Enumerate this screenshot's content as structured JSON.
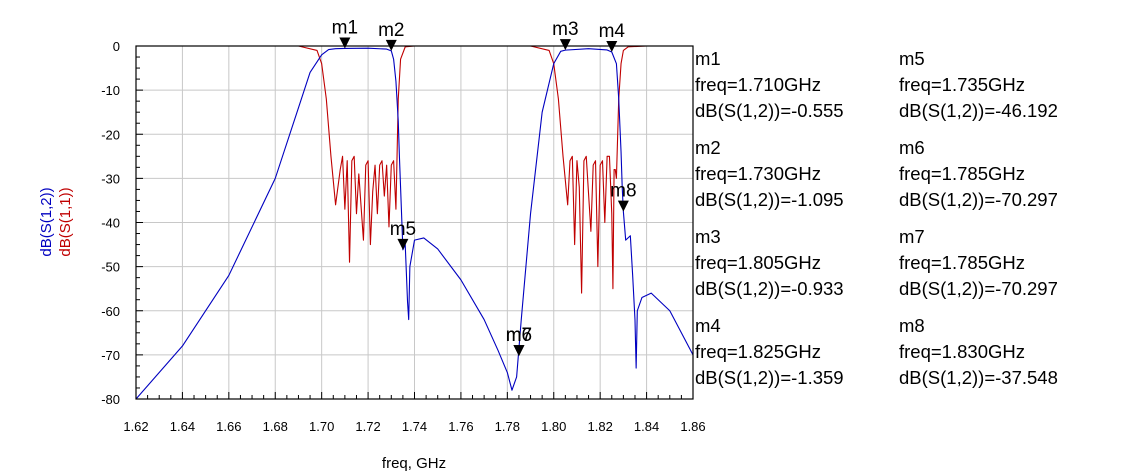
{
  "chart_data": {
    "type": "line",
    "title": "",
    "xlabel": "freq, GHz",
    "ylabels": [
      {
        "text": "dB(S(1,2))",
        "color": "#0000c0"
      },
      {
        "text": "dB(S(1,1))",
        "color": "#c00000"
      }
    ],
    "xlim": [
      1.62,
      1.86
    ],
    "ylim": [
      -80,
      0
    ],
    "x_ticks": [
      "1.62",
      "1.64",
      "1.66",
      "1.68",
      "1.70",
      "1.72",
      "1.74",
      "1.76",
      "1.78",
      "1.80",
      "1.82",
      "1.84",
      "1.86"
    ],
    "y_ticks": [
      "0",
      "-10",
      "-20",
      "-30",
      "-40",
      "-50",
      "-60",
      "-70",
      "-80"
    ],
    "x_tick_values": [
      1.62,
      1.64,
      1.66,
      1.68,
      1.7,
      1.72,
      1.74,
      1.76,
      1.78,
      1.8,
      1.82,
      1.84,
      1.86
    ],
    "y_tick_values": [
      0,
      -10,
      -20,
      -30,
      -40,
      -50,
      -60,
      -70,
      -80
    ],
    "grid": true,
    "series": [
      {
        "name": "dB(S(1,2))",
        "color": "#0000c0",
        "x": [
          1.62,
          1.64,
          1.66,
          1.68,
          1.69,
          1.695,
          1.7,
          1.703,
          1.706,
          1.71,
          1.72,
          1.728,
          1.73,
          1.731,
          1.732,
          1.733,
          1.7335,
          1.734,
          1.735,
          1.736,
          1.737,
          1.7375,
          1.738,
          1.74,
          1.744,
          1.75,
          1.76,
          1.77,
          1.776,
          1.78,
          1.782,
          1.784,
          1.786,
          1.79,
          1.795,
          1.8,
          1.803,
          1.805,
          1.815,
          1.823,
          1.825,
          1.827,
          1.828,
          1.829,
          1.8295,
          1.83,
          1.831,
          1.833,
          1.834,
          1.835,
          1.8355,
          1.836,
          1.838,
          1.842,
          1.85,
          1.86
        ],
        "y": [
          -80,
          -68,
          -52,
          -30,
          -14,
          -6,
          -2,
          -0.8,
          -0.6,
          -0.555,
          -0.5,
          -0.7,
          -1.095,
          -3,
          -8,
          -17,
          -25,
          -32,
          -46.192,
          -45,
          -58,
          -62,
          -50,
          -44,
          -43.5,
          -46,
          -53,
          -62,
          -69,
          -74,
          -78,
          -75,
          -62,
          -38,
          -15,
          -4,
          -1.2,
          -0.933,
          -0.6,
          -0.9,
          -1.359,
          -4,
          -12,
          -24,
          -32,
          -37.548,
          -44,
          -43,
          -52,
          -62,
          -73,
          -60,
          -57,
          -56,
          -60,
          -70
        ]
      },
      {
        "name": "dB(S(1,1))",
        "color": "#c00000",
        "x": [
          1.62,
          1.69,
          1.698,
          1.7,
          1.702,
          1.704,
          1.706,
          1.708,
          1.709,
          1.71,
          1.711,
          1.712,
          1.713,
          1.714,
          1.715,
          1.716,
          1.718,
          1.719,
          1.72,
          1.721,
          1.722,
          1.723,
          1.724,
          1.725,
          1.726,
          1.727,
          1.728,
          1.729,
          1.73,
          1.731,
          1.732,
          1.733,
          1.734,
          1.736,
          1.74,
          1.79,
          1.798,
          1.8,
          1.802,
          1.804,
          1.806,
          1.807,
          1.808,
          1.809,
          1.81,
          1.811,
          1.812,
          1.813,
          1.814,
          1.816,
          1.817,
          1.818,
          1.819,
          1.82,
          1.821,
          1.822,
          1.823,
          1.824,
          1.825,
          1.8255,
          1.826,
          1.8265,
          1.827,
          1.828,
          1.829,
          1.83,
          1.832,
          1.84,
          1.86
        ],
        "y": [
          0,
          0,
          -1,
          -4,
          -12,
          -25,
          -36,
          -28,
          -25,
          -37,
          -26,
          -49,
          -26,
          -25,
          -38,
          -29,
          -44,
          -27,
          -26,
          -45,
          -33,
          -27,
          -38,
          -27,
          -26,
          -34,
          -27,
          -41,
          -27,
          -26,
          -37,
          -12,
          -3,
          -0.2,
          0,
          0,
          -1,
          -4,
          -12,
          -25,
          -36,
          -26,
          -25,
          -45,
          -26,
          -32,
          -56,
          -26,
          -25,
          -42,
          -27,
          -26,
          -50,
          -27,
          -26,
          -40,
          -25,
          -25,
          -38,
          -55,
          -28,
          -28,
          -30,
          -12,
          -4,
          -1,
          -0.2,
          0,
          0
        ]
      }
    ],
    "markers": [
      {
        "label": "m1",
        "x": 1.71,
        "y": -0.555
      },
      {
        "label": "m2",
        "x": 1.73,
        "y": -1.095
      },
      {
        "label": "m3",
        "x": 1.805,
        "y": -0.933
      },
      {
        "label": "m4",
        "x": 1.825,
        "y": -1.359
      },
      {
        "label": "m5",
        "x": 1.735,
        "y": -46.192
      },
      {
        "label": "m6",
        "x": 1.785,
        "y": -70.297
      },
      {
        "label": "m7",
        "x": 1.785,
        "y": -70.297
      },
      {
        "label": "m8",
        "x": 1.83,
        "y": -37.548
      }
    ]
  },
  "readouts": [
    {
      "name": "m1",
      "freq": "freq=1.710GHz",
      "value": "dB(S(1,2))=-0.555"
    },
    {
      "name": "m5",
      "freq": "freq=1.735GHz",
      "value": "dB(S(1,2))=-46.192"
    },
    {
      "name": "m2",
      "freq": "freq=1.730GHz",
      "value": "dB(S(1,2))=-1.095"
    },
    {
      "name": "m6",
      "freq": "freq=1.785GHz",
      "value": "dB(S(1,2))=-70.297"
    },
    {
      "name": "m3",
      "freq": "freq=1.805GHz",
      "value": "dB(S(1,2))=-0.933"
    },
    {
      "name": "m7",
      "freq": "freq=1.785GHz",
      "value": "dB(S(1,2))=-70.297"
    },
    {
      "name": "m4",
      "freq": "freq=1.825GHz",
      "value": "dB(S(1,2))=-1.359"
    },
    {
      "name": "m8",
      "freq": "freq=1.830GHz",
      "value": "dB(S(1,2))=-37.548"
    }
  ]
}
